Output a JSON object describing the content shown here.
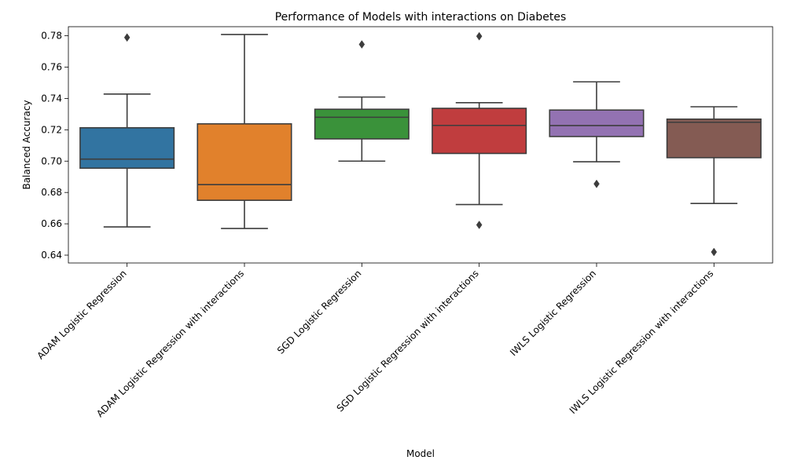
{
  "chart_data": {
    "type": "box",
    "title": "Performance of Models with interactions on Diabetes",
    "xlabel": "Model",
    "ylabel": "Balanced Accuracy",
    "ylim": [
      0.635,
      0.7858
    ],
    "yticks": [
      0.64,
      0.66,
      0.68,
      0.7,
      0.72,
      0.74,
      0.76,
      0.78
    ],
    "ytick_labels": [
      "0.64",
      "0.66",
      "0.68",
      "0.70",
      "0.72",
      "0.74",
      "0.76",
      "0.78"
    ],
    "grid": false,
    "categories": [
      "ADAM Logistic Regression",
      "ADAM Logistic Regression with interactions",
      "SGD Logistic Regression",
      "SGD Logistic Regression with interactions",
      "IWLS Logistic Regression",
      "IWLS Logistic Regression with interactions"
    ],
    "boxes": [
      {
        "whisker_low": 0.658,
        "q1": 0.6955,
        "median": 0.7013,
        "q3": 0.7213,
        "whisker_high": 0.7428,
        "outliers": [
          0.7789
        ],
        "color": "#3274a1"
      },
      {
        "whisker_low": 0.657,
        "q1": 0.675,
        "median": 0.685,
        "q3": 0.7238,
        "whisker_high": 0.7808,
        "outliers": [],
        "color": "#e1812c"
      },
      {
        "whisker_low": 0.7,
        "q1": 0.7142,
        "median": 0.728,
        "q3": 0.7331,
        "whisker_high": 0.7409,
        "outliers": [
          0.7745
        ],
        "color": "#3a923a"
      },
      {
        "whisker_low": 0.6723,
        "q1": 0.7049,
        "median": 0.7228,
        "q3": 0.7337,
        "whisker_high": 0.7373,
        "outliers": [
          0.7797,
          0.6593
        ],
        "color": "#c03d3e"
      },
      {
        "whisker_low": 0.6996,
        "q1": 0.7157,
        "median": 0.7227,
        "q3": 0.7326,
        "whisker_high": 0.7506,
        "outliers": [
          0.6855
        ],
        "color": "#9372b2"
      },
      {
        "whisker_low": 0.673,
        "q1": 0.7022,
        "median": 0.7248,
        "q3": 0.7268,
        "whisker_high": 0.7347,
        "outliers": [
          0.642
        ],
        "color": "#845b53"
      }
    ]
  }
}
